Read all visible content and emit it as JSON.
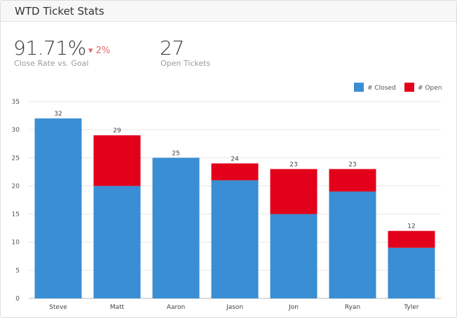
{
  "header": {
    "title": "WTD Ticket Stats"
  },
  "kpis": {
    "close_rate": {
      "value": "91.71%",
      "delta": "▾ 2%",
      "label": "Close Rate vs. Goal",
      "delta_color": "#e06a6a"
    },
    "open_tickets": {
      "value": "27",
      "label": "Open Tickets"
    }
  },
  "chart_data": {
    "type": "bar",
    "stacked": true,
    "categories": [
      "Steve",
      "Matt",
      "Aaron",
      "Jason",
      "Jon",
      "Ryan",
      "Tyler"
    ],
    "series": [
      {
        "name": "# Closed",
        "color": "#3a8ed3",
        "values": [
          32,
          20,
          25,
          21,
          15,
          19,
          9
        ]
      },
      {
        "name": "# Open",
        "color": "#e3001b",
        "values": [
          0,
          9,
          0,
          3,
          8,
          4,
          3
        ]
      }
    ],
    "totals": [
      "32",
      "29",
      "25",
      "24",
      "23",
      "23",
      "12"
    ],
    "ylim": [
      0,
      35
    ],
    "yticks": [
      "0",
      "5",
      "10",
      "15",
      "20",
      "25",
      "30",
      "35"
    ],
    "grid": true,
    "legend": "top-right"
  }
}
